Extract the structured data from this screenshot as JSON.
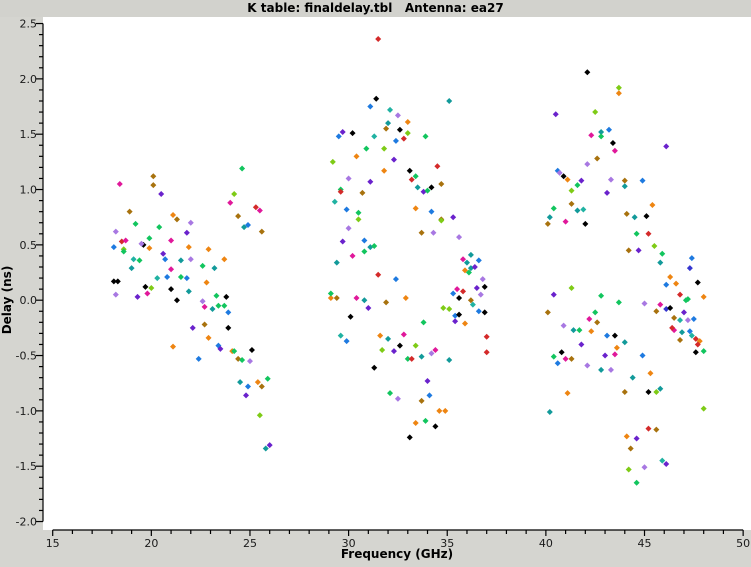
{
  "window": {
    "background_color": "#d5d5d0",
    "titlebar_color": "#d2d2cd",
    "plot_background_color": "#ffffff",
    "axis_color": "#000000",
    "tick_label_color": "#1a1a1a"
  },
  "chart_data": {
    "type": "scatter",
    "title": "K table: finaldelay.tbl   Antenna: ea27",
    "xlabel": "Frequency (GHz)",
    "ylabel": "Delay (ns)",
    "xlim": [
      15,
      50
    ],
    "ylim": [
      -2.0,
      2.5
    ],
    "x_major_ticks": [
      15,
      20,
      25,
      30,
      35,
      40,
      45,
      50
    ],
    "x_minor_step": 1,
    "y_major_ticks": [
      -2.0,
      -1.5,
      -1.0,
      -0.5,
      0.0,
      0.5,
      1.0,
      1.5,
      2.0,
      2.5
    ],
    "y_minor_step": 0.1,
    "grid": false,
    "legend": "none",
    "marker": "diamond",
    "marker_half_size": 3,
    "palette": [
      "#000000",
      "#e0189a",
      "#d42a2a",
      "#ee8512",
      "#a8720e",
      "#6a22cc",
      "#a878e2",
      "#1e7ae0",
      "#129a9a",
      "#20b2a2",
      "#12c55e",
      "#7ecb16",
      "#3535cf"
    ],
    "points_format": [
      "freq_ghz",
      "delay_ns",
      "palette_index"
    ],
    "points": [
      [
        24.6,
        1.19,
        10
      ],
      [
        18.4,
        1.05,
        1
      ],
      [
        20.1,
        1.12,
        4
      ],
      [
        20.1,
        1.04,
        4
      ],
      [
        20.5,
        0.96,
        5
      ],
      [
        24.2,
        0.96,
        11
      ],
      [
        24.0,
        0.88,
        1
      ],
      [
        25.3,
        0.84,
        2
      ],
      [
        25.5,
        0.81,
        1
      ],
      [
        18.9,
        0.8,
        4
      ],
      [
        24.4,
        0.76,
        4
      ],
      [
        21.1,
        0.77,
        3
      ],
      [
        21.3,
        0.73,
        4
      ],
      [
        19.2,
        0.69,
        10
      ],
      [
        20.4,
        0.66,
        10
      ],
      [
        24.7,
        0.66,
        8
      ],
      [
        24.9,
        0.68,
        7
      ],
      [
        22.0,
        0.7,
        6
      ],
      [
        21.8,
        0.61,
        5
      ],
      [
        25.6,
        0.62,
        4
      ],
      [
        18.2,
        0.62,
        6
      ],
      [
        18.5,
        0.53,
        2
      ],
      [
        18.7,
        0.54,
        1
      ],
      [
        19.9,
        0.56,
        10
      ],
      [
        21.0,
        0.54,
        1
      ],
      [
        19.6,
        0.5,
        0
      ],
      [
        19.5,
        0.51,
        6
      ],
      [
        19.9,
        0.47,
        3
      ],
      [
        18.6,
        0.46,
        11
      ],
      [
        18.6,
        0.44,
        10
      ],
      [
        18.1,
        0.48,
        7
      ],
      [
        20.6,
        0.42,
        5
      ],
      [
        20.7,
        0.37,
        7
      ],
      [
        21.9,
        0.48,
        3
      ],
      [
        22.9,
        0.46,
        3
      ],
      [
        21.5,
        0.36,
        8
      ],
      [
        19.1,
        0.37,
        9
      ],
      [
        19.4,
        0.36,
        10
      ],
      [
        19.0,
        0.29,
        8
      ],
      [
        22.0,
        0.37,
        6
      ],
      [
        23.2,
        0.29,
        8
      ],
      [
        23.7,
        0.37,
        3
      ],
      [
        22.6,
        0.31,
        10
      ],
      [
        21.5,
        0.21,
        10
      ],
      [
        21.8,
        0.2,
        7
      ],
      [
        20.8,
        0.21,
        7
      ],
      [
        20.3,
        0.2,
        9
      ],
      [
        21.0,
        0.28,
        1
      ],
      [
        18.1,
        0.17,
        0
      ],
      [
        18.3,
        0.17,
        0
      ],
      [
        18.2,
        0.05,
        6
      ],
      [
        19.7,
        0.12,
        0
      ],
      [
        20.0,
        0.11,
        11
      ],
      [
        19.8,
        0.06,
        1
      ],
      [
        19.3,
        0.03,
        5
      ],
      [
        21.0,
        0.1,
        0
      ],
      [
        21.3,
        0.0,
        0
      ],
      [
        21.9,
        0.08,
        8
      ],
      [
        22.6,
        -0.01,
        6
      ],
      [
        23.3,
        0.04,
        10
      ],
      [
        23.7,
        -0.05,
        10
      ],
      [
        23.8,
        0.03,
        0
      ],
      [
        22.8,
        0.16,
        3
      ],
      [
        23.1,
        -0.08,
        8
      ],
      [
        23.4,
        -0.05,
        10
      ],
      [
        22.7,
        -0.06,
        1
      ],
      [
        23.9,
        -0.11,
        7
      ],
      [
        23.9,
        -0.25,
        0
      ],
      [
        22.1,
        -0.25,
        5
      ],
      [
        22.7,
        -0.22,
        4
      ],
      [
        22.9,
        -0.34,
        3
      ],
      [
        21.1,
        -0.42,
        3
      ],
      [
        23.4,
        -0.41,
        7
      ],
      [
        23.5,
        -0.44,
        5
      ],
      [
        24.1,
        -0.46,
        3
      ],
      [
        24.2,
        -0.46,
        10
      ],
      [
        25.1,
        -0.45,
        0
      ],
      [
        22.4,
        -0.53,
        7
      ],
      [
        24.4,
        -0.53,
        4
      ],
      [
        24.6,
        -0.54,
        10
      ],
      [
        25.0,
        -0.55,
        6
      ],
      [
        24.5,
        -0.74,
        8
      ],
      [
        24.9,
        -0.78,
        7
      ],
      [
        25.4,
        -0.74,
        3
      ],
      [
        25.9,
        -0.71,
        10
      ],
      [
        25.6,
        -0.78,
        4
      ],
      [
        24.8,
        -0.86,
        5
      ],
      [
        25.5,
        -1.04,
        11
      ],
      [
        25.8,
        -1.34,
        8
      ],
      [
        26.0,
        -1.31,
        5
      ],
      [
        31.5,
        2.36,
        2
      ],
      [
        31.4,
        1.82,
        0
      ],
      [
        35.1,
        1.8,
        8
      ],
      [
        31.1,
        1.75,
        7
      ],
      [
        32.1,
        1.72,
        9
      ],
      [
        32.5,
        1.67,
        6
      ],
      [
        32.0,
        1.6,
        8
      ],
      [
        33.0,
        1.61,
        3
      ],
      [
        31.9,
        1.55,
        4
      ],
      [
        32.6,
        1.54,
        0
      ],
      [
        33.0,
        1.51,
        11
      ],
      [
        29.7,
        1.52,
        5
      ],
      [
        29.5,
        1.48,
        7
      ],
      [
        30.2,
        1.51,
        0
      ],
      [
        33.9,
        1.48,
        10
      ],
      [
        31.3,
        1.48,
        9
      ],
      [
        32.4,
        1.44,
        7
      ],
      [
        32.8,
        1.46,
        2
      ],
      [
        30.9,
        1.37,
        10
      ],
      [
        31.8,
        1.37,
        11
      ],
      [
        30.4,
        1.3,
        3
      ],
      [
        32.3,
        1.27,
        5
      ],
      [
        29.2,
        1.25,
        11
      ],
      [
        34.5,
        1.21,
        2
      ],
      [
        33.1,
        1.17,
        0
      ],
      [
        31.8,
        1.17,
        3
      ],
      [
        33.4,
        1.12,
        10
      ],
      [
        33.2,
        1.09,
        2
      ],
      [
        30.0,
        1.1,
        6
      ],
      [
        31.1,
        1.07,
        5
      ],
      [
        33.5,
        1.02,
        8
      ],
      [
        34.2,
        1.02,
        0
      ],
      [
        34.7,
        1.05,
        4
      ],
      [
        29.6,
        1.0,
        10
      ],
      [
        29.6,
        0.98,
        2
      ],
      [
        30.7,
        0.97,
        4
      ],
      [
        33.8,
        0.98,
        5
      ],
      [
        34.0,
        0.99,
        10
      ],
      [
        29.3,
        0.89,
        9
      ],
      [
        29.9,
        0.82,
        7
      ],
      [
        30.5,
        0.79,
        10
      ],
      [
        30.5,
        0.73,
        11
      ],
      [
        33.4,
        0.83,
        3
      ],
      [
        34.2,
        0.8,
        7
      ],
      [
        34.7,
        0.73,
        4
      ],
      [
        34.7,
        0.72,
        11
      ],
      [
        35.3,
        0.75,
        5
      ],
      [
        30.0,
        0.65,
        6
      ],
      [
        33.7,
        0.61,
        4
      ],
      [
        34.3,
        0.61,
        6
      ],
      [
        35.6,
        0.57,
        6
      ],
      [
        29.7,
        0.53,
        5
      ],
      [
        30.8,
        0.54,
        7
      ],
      [
        31.1,
        0.48,
        8
      ],
      [
        31.3,
        0.49,
        10
      ],
      [
        30.8,
        0.44,
        10
      ],
      [
        30.2,
        0.4,
        1
      ],
      [
        29.4,
        0.34,
        8
      ],
      [
        31.5,
        0.23,
        2
      ],
      [
        32.4,
        0.19,
        7
      ],
      [
        35.8,
        0.37,
        1
      ],
      [
        36.2,
        0.41,
        8
      ],
      [
        36.0,
        0.34,
        8
      ],
      [
        36.6,
        0.36,
        7
      ],
      [
        35.9,
        0.27,
        3
      ],
      [
        36.2,
        0.29,
        8
      ],
      [
        36.4,
        0.3,
        5
      ],
      [
        36.1,
        0.25,
        10
      ],
      [
        36.8,
        0.19,
        6
      ],
      [
        36.5,
        0.11,
        5
      ],
      [
        36.9,
        0.12,
        0
      ],
      [
        35.8,
        0.08,
        2
      ],
      [
        35.5,
        0.1,
        1
      ],
      [
        35.3,
        0.06,
        7
      ],
      [
        36.7,
        0.05,
        6
      ],
      [
        35.6,
        0.02,
        0
      ],
      [
        36.2,
        0.0,
        4
      ],
      [
        36.3,
        -0.04,
        9
      ],
      [
        29.1,
        0.02,
        3
      ],
      [
        29.4,
        0.02,
        4
      ],
      [
        29.1,
        0.06,
        10
      ],
      [
        30.4,
        0.02,
        1
      ],
      [
        30.8,
        0.0,
        8
      ],
      [
        31.0,
        -0.07,
        5
      ],
      [
        31.9,
        -0.02,
        4
      ],
      [
        32.9,
        0.02,
        3
      ],
      [
        34.8,
        -0.07,
        11
      ],
      [
        35.1,
        -0.08,
        11
      ],
      [
        36.6,
        -0.1,
        7
      ],
      [
        36.9,
        -0.11,
        0
      ],
      [
        35.4,
        -0.14,
        7
      ],
      [
        35.6,
        -0.13,
        0
      ],
      [
        33.8,
        -0.2,
        10
      ],
      [
        35.4,
        -0.19,
        5
      ],
      [
        35.9,
        -0.21,
        3
      ],
      [
        30.1,
        -0.15,
        0
      ],
      [
        29.6,
        -0.32,
        9
      ],
      [
        29.9,
        -0.37,
        7
      ],
      [
        31.6,
        -0.32,
        3
      ],
      [
        32.0,
        -0.35,
        8
      ],
      [
        32.8,
        -0.31,
        1
      ],
      [
        37.0,
        -0.33,
        2
      ],
      [
        32.6,
        -0.41,
        0
      ],
      [
        33.4,
        -0.41,
        11
      ],
      [
        31.7,
        -0.45,
        11
      ],
      [
        32.3,
        -0.46,
        5
      ],
      [
        33.0,
        -0.53,
        10
      ],
      [
        33.2,
        -0.53,
        2
      ],
      [
        33.7,
        -0.51,
        8
      ],
      [
        34.2,
        -0.48,
        6
      ],
      [
        34.4,
        -0.45,
        1
      ],
      [
        35.1,
        -0.54,
        8
      ],
      [
        37.0,
        -0.47,
        2
      ],
      [
        31.3,
        -0.61,
        0
      ],
      [
        34.0,
        -0.73,
        5
      ],
      [
        32.1,
        -0.84,
        10
      ],
      [
        32.5,
        -0.89,
        6
      ],
      [
        34.1,
        -0.86,
        7
      ],
      [
        33.7,
        -0.91,
        4
      ],
      [
        34.6,
        -1.0,
        3
      ],
      [
        34.9,
        -1.0,
        3
      ],
      [
        33.4,
        -1.11,
        3
      ],
      [
        33.9,
        -1.09,
        10
      ],
      [
        34.4,
        -1.14,
        0
      ],
      [
        33.1,
        -1.24,
        0
      ],
      [
        42.1,
        2.06,
        0
      ],
      [
        43.7,
        1.92,
        11
      ],
      [
        43.7,
        1.87,
        3
      ],
      [
        40.5,
        1.68,
        5
      ],
      [
        42.5,
        1.7,
        11
      ],
      [
        42.8,
        1.52,
        8
      ],
      [
        43.2,
        1.54,
        7
      ],
      [
        42.3,
        1.49,
        1
      ],
      [
        42.8,
        1.48,
        10
      ],
      [
        43.4,
        1.42,
        0
      ],
      [
        46.1,
        1.39,
        5
      ],
      [
        43.5,
        1.35,
        1
      ],
      [
        42.6,
        1.28,
        4
      ],
      [
        42.1,
        1.23,
        6
      ],
      [
        40.6,
        1.17,
        7
      ],
      [
        40.7,
        1.15,
        6
      ],
      [
        40.9,
        1.12,
        0
      ],
      [
        41.1,
        1.09,
        3
      ],
      [
        41.8,
        1.08,
        5
      ],
      [
        43.3,
        1.09,
        6
      ],
      [
        44.0,
        1.08,
        4
      ],
      [
        44.9,
        1.08,
        7
      ],
      [
        41.6,
        1.04,
        10
      ],
      [
        41.3,
        0.99,
        11
      ],
      [
        44.0,
        1.03,
        8
      ],
      [
        43.1,
        0.97,
        5
      ],
      [
        40.4,
        0.83,
        10
      ],
      [
        41.3,
        0.87,
        4
      ],
      [
        41.6,
        0.81,
        8
      ],
      [
        41.9,
        0.82,
        9
      ],
      [
        40.2,
        0.75,
        8
      ],
      [
        40.1,
        0.69,
        4
      ],
      [
        41.0,
        0.71,
        1
      ],
      [
        42.0,
        0.69,
        0
      ],
      [
        45.4,
        0.86,
        3
      ],
      [
        44.1,
        0.78,
        4
      ],
      [
        44.5,
        0.75,
        8
      ],
      [
        45.1,
        0.76,
        0
      ],
      [
        44.6,
        0.6,
        10
      ],
      [
        45.2,
        0.6,
        2
      ],
      [
        45.5,
        0.49,
        11
      ],
      [
        44.2,
        0.45,
        4
      ],
      [
        44.7,
        0.45,
        5
      ],
      [
        45.9,
        0.42,
        10
      ],
      [
        45.8,
        0.34,
        8
      ],
      [
        47.4,
        0.38,
        7
      ],
      [
        47.3,
        0.29,
        12
      ],
      [
        46.3,
        0.21,
        3
      ],
      [
        46.1,
        0.14,
        7
      ],
      [
        46.6,
        0.15,
        3
      ],
      [
        47.7,
        0.16,
        0
      ],
      [
        46.8,
        0.05,
        2
      ],
      [
        47.2,
        0.01,
        10
      ],
      [
        48.0,
        0.03,
        3
      ],
      [
        41.3,
        0.11,
        11
      ],
      [
        40.4,
        0.05,
        5
      ],
      [
        42.8,
        0.04,
        10
      ],
      [
        43.7,
        -0.02,
        10
      ],
      [
        45.0,
        -0.03,
        6
      ],
      [
        40.1,
        -0.11,
        4
      ],
      [
        42.5,
        -0.11,
        10
      ],
      [
        42.2,
        -0.17,
        1
      ],
      [
        42.6,
        -0.2,
        4
      ],
      [
        40.9,
        -0.23,
        6
      ],
      [
        41.4,
        -0.27,
        8
      ],
      [
        41.7,
        -0.27,
        10
      ],
      [
        42.3,
        -0.28,
        3
      ],
      [
        43.1,
        -0.32,
        7
      ],
      [
        43.5,
        -0.32,
        0
      ],
      [
        44.0,
        -0.38,
        8
      ],
      [
        41.8,
        -0.4,
        5
      ],
      [
        43.6,
        -0.43,
        3
      ],
      [
        45.6,
        -0.1,
        4
      ],
      [
        46.1,
        -0.08,
        12
      ],
      [
        46.3,
        -0.07,
        0
      ],
      [
        47.2,
        -0.18,
        6
      ],
      [
        47.0,
        -0.11,
        5
      ],
      [
        46.5,
        -0.16,
        4
      ],
      [
        46.8,
        -0.18,
        9
      ],
      [
        46.5,
        -0.27,
        1
      ],
      [
        46.4,
        -0.25,
        2
      ],
      [
        46.9,
        -0.29,
        8
      ],
      [
        47.3,
        -0.28,
        7
      ],
      [
        46.8,
        -0.36,
        4
      ],
      [
        47.6,
        -0.35,
        2
      ],
      [
        47.8,
        -0.37,
        3
      ],
      [
        47.7,
        -0.4,
        2
      ],
      [
        47.4,
        -0.32,
        9
      ],
      [
        45.8,
        -0.04,
        1
      ],
      [
        47.1,
        0.0,
        10
      ],
      [
        47.5,
        -0.17,
        7
      ],
      [
        40.4,
        -0.51,
        10
      ],
      [
        40.8,
        -0.47,
        0
      ],
      [
        41.0,
        -0.53,
        1
      ],
      [
        41.3,
        -0.53,
        4
      ],
      [
        40.6,
        -0.57,
        7
      ],
      [
        43.0,
        -0.5,
        5
      ],
      [
        43.5,
        -0.49,
        1
      ],
      [
        44.9,
        -0.5,
        7
      ],
      [
        47.6,
        -0.47,
        0
      ],
      [
        48.0,
        -0.46,
        10
      ],
      [
        42.1,
        -0.59,
        6
      ],
      [
        42.8,
        -0.63,
        8
      ],
      [
        43.3,
        -0.63,
        6
      ],
      [
        44.4,
        -0.7,
        8
      ],
      [
        45.3,
        -0.66,
        3
      ],
      [
        41.1,
        -0.84,
        3
      ],
      [
        44.0,
        -0.83,
        4
      ],
      [
        45.2,
        -0.83,
        0
      ],
      [
        45.6,
        -0.83,
        11
      ],
      [
        45.8,
        -0.8,
        8
      ],
      [
        40.2,
        -1.01,
        8
      ],
      [
        48.0,
        -0.98,
        11
      ],
      [
        45.2,
        -1.16,
        2
      ],
      [
        45.6,
        -1.17,
        4
      ],
      [
        44.1,
        -1.23,
        3
      ],
      [
        44.6,
        -1.25,
        5
      ],
      [
        44.3,
        -1.34,
        4
      ],
      [
        45.9,
        -1.45,
        9
      ],
      [
        46.1,
        -1.48,
        5
      ],
      [
        44.2,
        -1.53,
        11
      ],
      [
        45.0,
        -1.51,
        6
      ],
      [
        44.6,
        -1.65,
        10
      ]
    ]
  }
}
